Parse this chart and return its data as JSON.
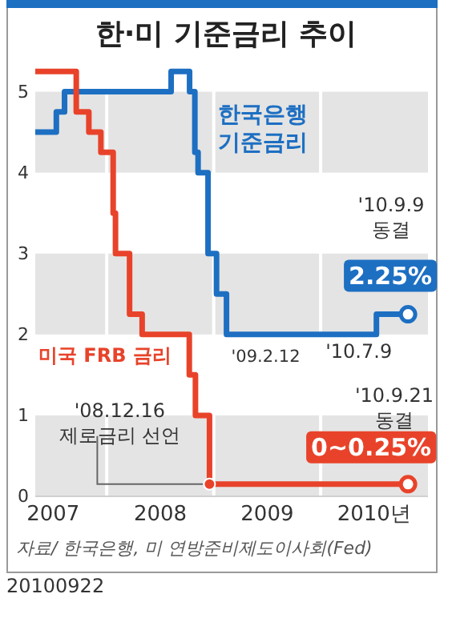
{
  "chart_data": {
    "type": "step",
    "title": "한·미 기준금리 추이",
    "xlim": [
      "2007-05-01",
      "2011-01-01"
    ],
    "xticks": [
      {
        "value": "2007-07-01",
        "label": "2007"
      },
      {
        "value": "2008-07-01",
        "label": "2008"
      },
      {
        "value": "2009-07-01",
        "label": "2009"
      },
      {
        "value": "2010-07-01",
        "label": "2010년"
      }
    ],
    "ylim": [
      0,
      5.5
    ],
    "yticks": [
      0,
      1,
      2,
      3,
      4,
      5
    ],
    "grid": true,
    "series": [
      {
        "name": "한국은행 기준금리",
        "color": "#1d6fc2",
        "x": [
          "2007-05-01",
          "2007-07-12",
          "2007-08-09",
          "2008-08-07",
          "2008-10-09",
          "2008-10-27",
          "2008-11-07",
          "2008-12-11",
          "2009-01-09",
          "2009-02-12",
          "2010-07-09",
          "2010-10-25"
        ],
        "values": [
          4.5,
          4.75,
          5,
          5.25,
          5,
          4.25,
          4,
          3,
          2.5,
          2,
          2.25,
          2.25
        ]
      },
      {
        "name": "미국 FRB 금리",
        "color": "#e8432a",
        "x": [
          "2007-05-01",
          "2007-09-18",
          "2007-10-31",
          "2007-12-11",
          "2008-01-22",
          "2008-01-30",
          "2008-03-18",
          "2008-04-30",
          "2008-10-08",
          "2008-10-29",
          "2008-12-16",
          "2010-10-25"
        ],
        "values": [
          5.25,
          4.75,
          4.5,
          4.25,
          3.5,
          3,
          2.25,
          2,
          1.5,
          1,
          0.15,
          0.15
        ]
      }
    ],
    "annotations": [
      {
        "text": "'09.2.12",
        "x": "2009-02-12",
        "y": 2
      },
      {
        "text": "'10.7.9",
        "x": "2010-07-09",
        "y": 2.25
      },
      "'10.9.9\n동결",
      {
        "text": "2.25%",
        "x": "2010-10-25",
        "y": 2.25
      },
      "'10.9.21\n동결",
      {
        "text": "0~0.25%",
        "x": "2010-10-25",
        "y": 0.15
      },
      {
        "text": "'08.12.16\n제로금리 선언",
        "x": "2008-12-16",
        "y": 0.15
      },
      "자료/ 한국은행, 미 연방준비제도이사회(Fed)",
      "20100922"
    ]
  }
}
